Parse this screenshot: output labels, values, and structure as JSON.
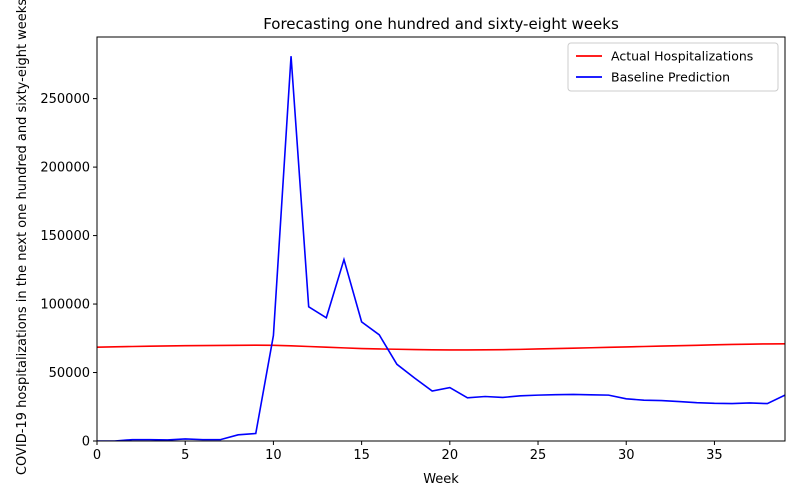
{
  "chart_data": {
    "type": "line",
    "title": "Forecasting one hundred and sixty-eight weeks",
    "xlabel": "Week",
    "ylabel": "COVID-19 hospitalizations in the next one hundred and sixty-eight weeks",
    "xlim": [
      0,
      39
    ],
    "ylim": [
      0,
      295000
    ],
    "xticks": [
      0,
      5,
      10,
      15,
      20,
      25,
      30,
      35
    ],
    "yticks": [
      0,
      50000,
      100000,
      150000,
      200000,
      250000
    ],
    "grid": false,
    "legend_position": "top-right",
    "x": [
      0,
      1,
      2,
      3,
      4,
      5,
      6,
      7,
      8,
      9,
      10,
      11,
      12,
      13,
      14,
      15,
      16,
      17,
      18,
      19,
      20,
      21,
      22,
      23,
      24,
      25,
      26,
      27,
      28,
      29,
      30,
      31,
      32,
      33,
      34,
      35,
      36,
      37,
      38,
      39
    ],
    "series": [
      {
        "name": "Actual Hospitalizations",
        "color": "#ff0000",
        "values": [
          68500,
          68800,
          69000,
          69200,
          69400,
          69600,
          69700,
          69800,
          69900,
          69950,
          69900,
          69500,
          69000,
          68500,
          68000,
          67500,
          67200,
          67000,
          66800,
          66600,
          66500,
          66500,
          66600,
          66700,
          66900,
          67200,
          67500,
          67800,
          68100,
          68400,
          68700,
          69000,
          69300,
          69600,
          69900,
          70200,
          70500,
          70700,
          70900,
          71000
        ]
      },
      {
        "name": "Baseline Prediction",
        "color": "#0000ff",
        "values": [
          0,
          0,
          1000,
          1000,
          800,
          1500,
          1000,
          1000,
          4500,
          5500,
          77000,
          281000,
          98000,
          90000,
          132500,
          87000,
          77500,
          56000,
          46000,
          36500,
          39000,
          31500,
          32500,
          31800,
          33000,
          33500,
          33800,
          34000,
          33700,
          33500,
          30800,
          29800,
          29500,
          28800,
          28000,
          27500,
          27300,
          27800,
          27300,
          33500
        ]
      }
    ]
  }
}
